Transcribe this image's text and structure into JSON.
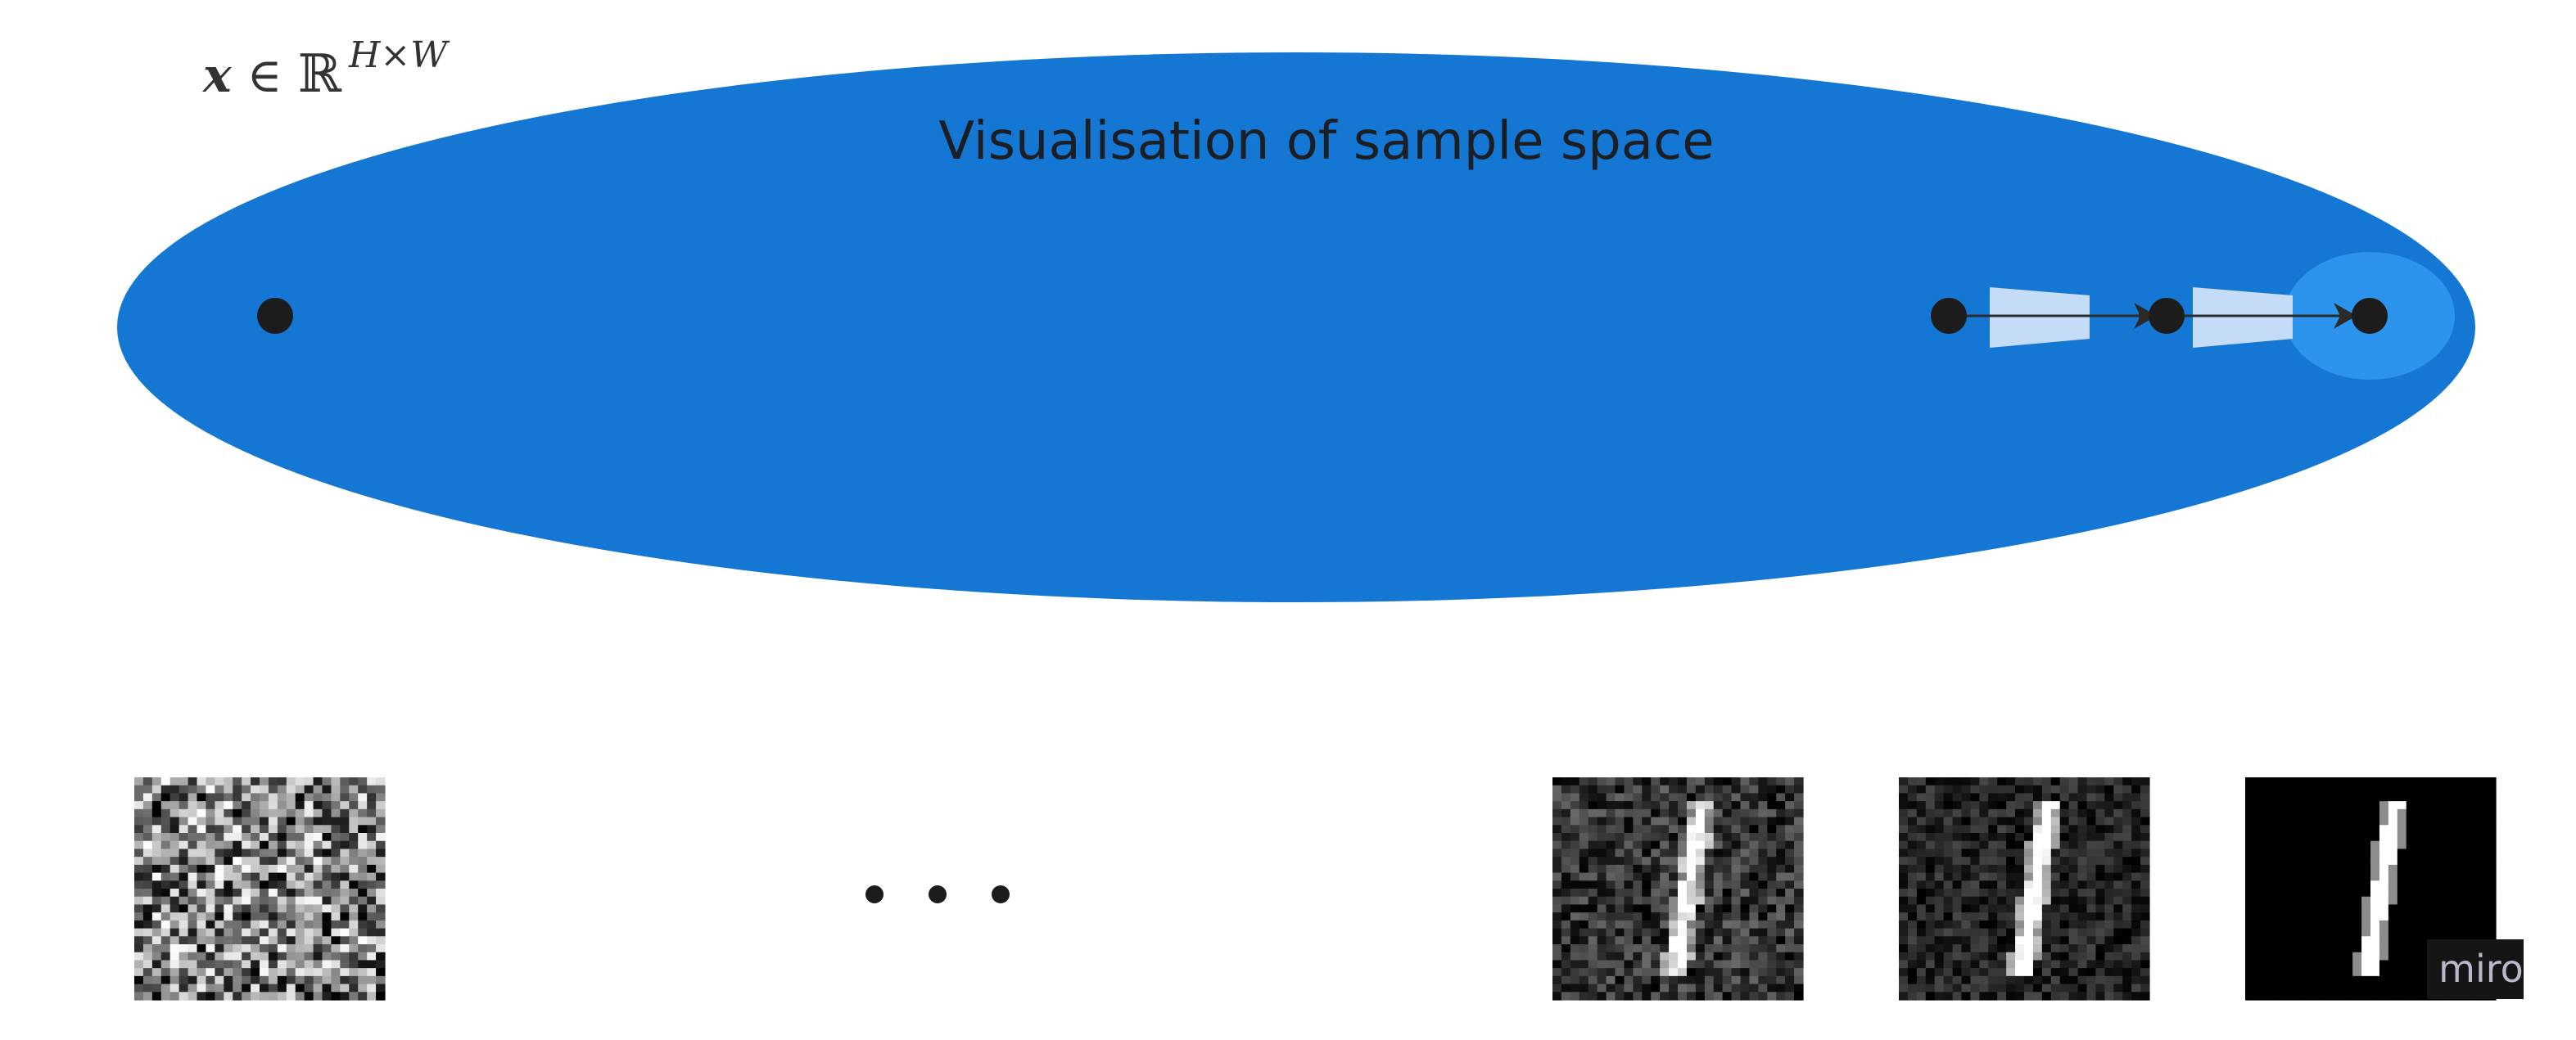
{
  "math_label": {
    "x": "x",
    "in": "∈",
    "R": "ℝ",
    "sup": "H×W"
  },
  "title": "Visualisation of sample space",
  "ellipsis": "• • •",
  "watermark": "miro",
  "colors": {
    "ellipse": "#1477d4",
    "highlight": "#2d94ee",
    "trapezoid": "#c5dcf8",
    "node": "#1c1c1c",
    "background": "#ffffff"
  },
  "nodes": [
    "start-node",
    "node-1",
    "node-2",
    "target-node"
  ],
  "samples": [
    {
      "name": "noise-sample",
      "noise_level": 1.0
    },
    {
      "name": "noisy-digit-sample",
      "noise_level": 0.55
    },
    {
      "name": "slightly-noisy-digit-sample",
      "noise_level": 0.2
    },
    {
      "name": "clean-digit-sample",
      "noise_level": 0.0
    }
  ]
}
